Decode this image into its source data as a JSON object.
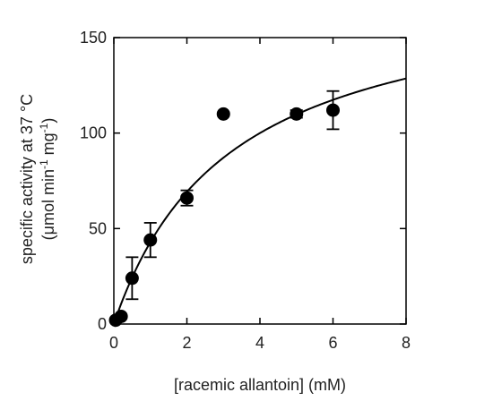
{
  "chart_data": {
    "type": "scatter",
    "title": "",
    "xlabel": "[racemic allantoin] (mM)",
    "ylabel_line1": "specific activity at 37 °C",
    "ylabel_line2": {
      "open": "(μmol min",
      "exp1": "-1",
      "mid": " mg",
      "exp2": "-1",
      "close": ")"
    },
    "xlim": [
      0,
      8
    ],
    "ylim": [
      0,
      150
    ],
    "x_ticks": [
      0,
      2,
      4,
      6,
      8
    ],
    "y_ticks": [
      0,
      50,
      100,
      150
    ],
    "grid": false,
    "points": [
      {
        "x": 0.05,
        "y": 2,
        "err": 0
      },
      {
        "x": 0.2,
        "y": 4,
        "err": 0
      },
      {
        "x": 0.5,
        "y": 24,
        "err": 11
      },
      {
        "x": 1.0,
        "y": 44,
        "err": 9
      },
      {
        "x": 2.0,
        "y": 66,
        "err": 4
      },
      {
        "x": 3.0,
        "y": 110,
        "err": 0
      },
      {
        "x": 5.0,
        "y": 110,
        "err": 2
      },
      {
        "x": 6.0,
        "y": 112,
        "err": 10
      }
    ],
    "fit": {
      "model": "michaelis-menten",
      "vmax": 180,
      "km": 3.2
    },
    "colors": {
      "marker": "#000000",
      "axis": "#000000",
      "text": "#222222"
    }
  }
}
